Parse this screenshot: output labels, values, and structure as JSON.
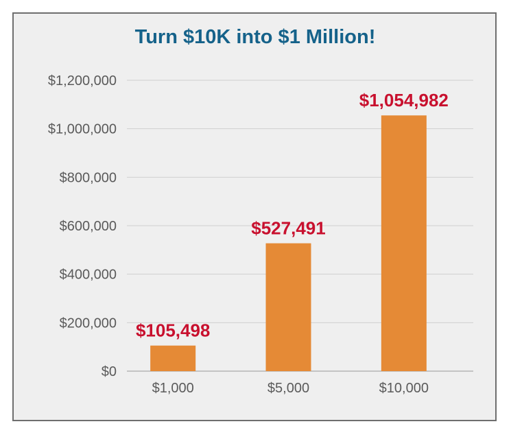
{
  "chart_data": {
    "type": "bar",
    "title": "Turn $10K into $1 Million!",
    "xlabel": "",
    "ylabel": "",
    "categories": [
      "$1,000",
      "$5,000",
      "$10,000"
    ],
    "values": [
      105498,
      527491,
      1054982
    ],
    "data_labels": [
      "$105,498",
      "$527,491",
      "$1,054,982"
    ],
    "ylim": [
      0,
      1200000
    ],
    "yticks": [
      0,
      200000,
      400000,
      600000,
      800000,
      1000000,
      1200000
    ],
    "ytick_labels": [
      "$0",
      "$200,000",
      "$400,000",
      "$600,000",
      "$800,000",
      "$1,000,000",
      "$1,200,000"
    ],
    "grid": true,
    "legend": "none",
    "colors": {
      "bar": "#e58a36",
      "data_label": "#c8102e",
      "title": "#15628a",
      "grid": "#cfcfcf",
      "panel_background": "#efefef",
      "panel_border": "#6e6e6e"
    }
  }
}
